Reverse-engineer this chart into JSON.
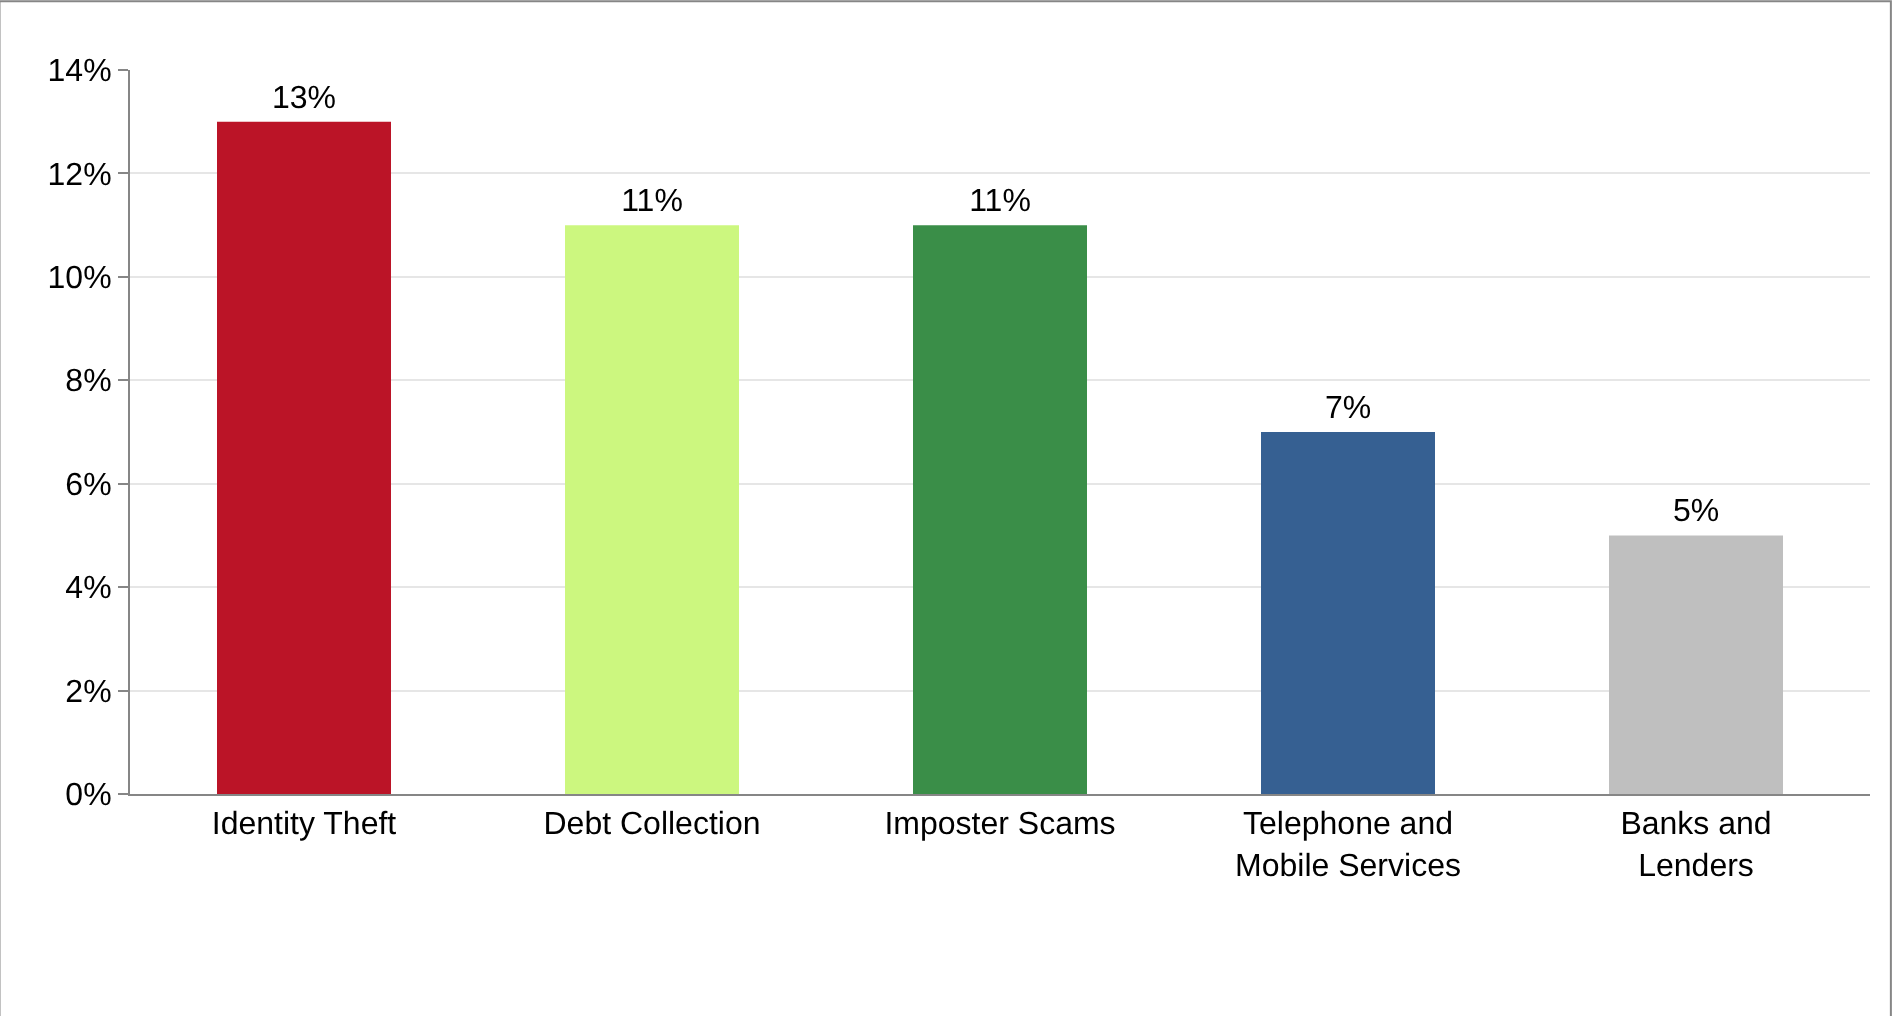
{
  "chart_data": {
    "type": "bar",
    "categories": [
      "Identity Theft",
      "Debt Collection",
      "Imposter Scams",
      "Telephone and Mobile Services",
      "Banks and Lenders"
    ],
    "values": [
      13,
      11,
      11,
      7,
      5
    ],
    "colors": [
      "#bb1427",
      "#ccf77f",
      "#3a8e48",
      "#366092",
      "#bfbfbf"
    ],
    "value_labels": [
      "13%",
      "11%",
      "11%",
      "7%",
      "5%"
    ],
    "ylim": [
      0,
      14
    ],
    "yticks": [
      {
        "value": 0,
        "label": "0%"
      },
      {
        "value": 2,
        "label": "2%"
      },
      {
        "value": 4,
        "label": "4%"
      },
      {
        "value": 6,
        "label": "6%"
      },
      {
        "value": 8,
        "label": "8%"
      },
      {
        "value": 10,
        "label": "10%"
      },
      {
        "value": 12,
        "label": "12%"
      },
      {
        "value": 14,
        "label": "14%"
      }
    ],
    "grid": "y"
  }
}
